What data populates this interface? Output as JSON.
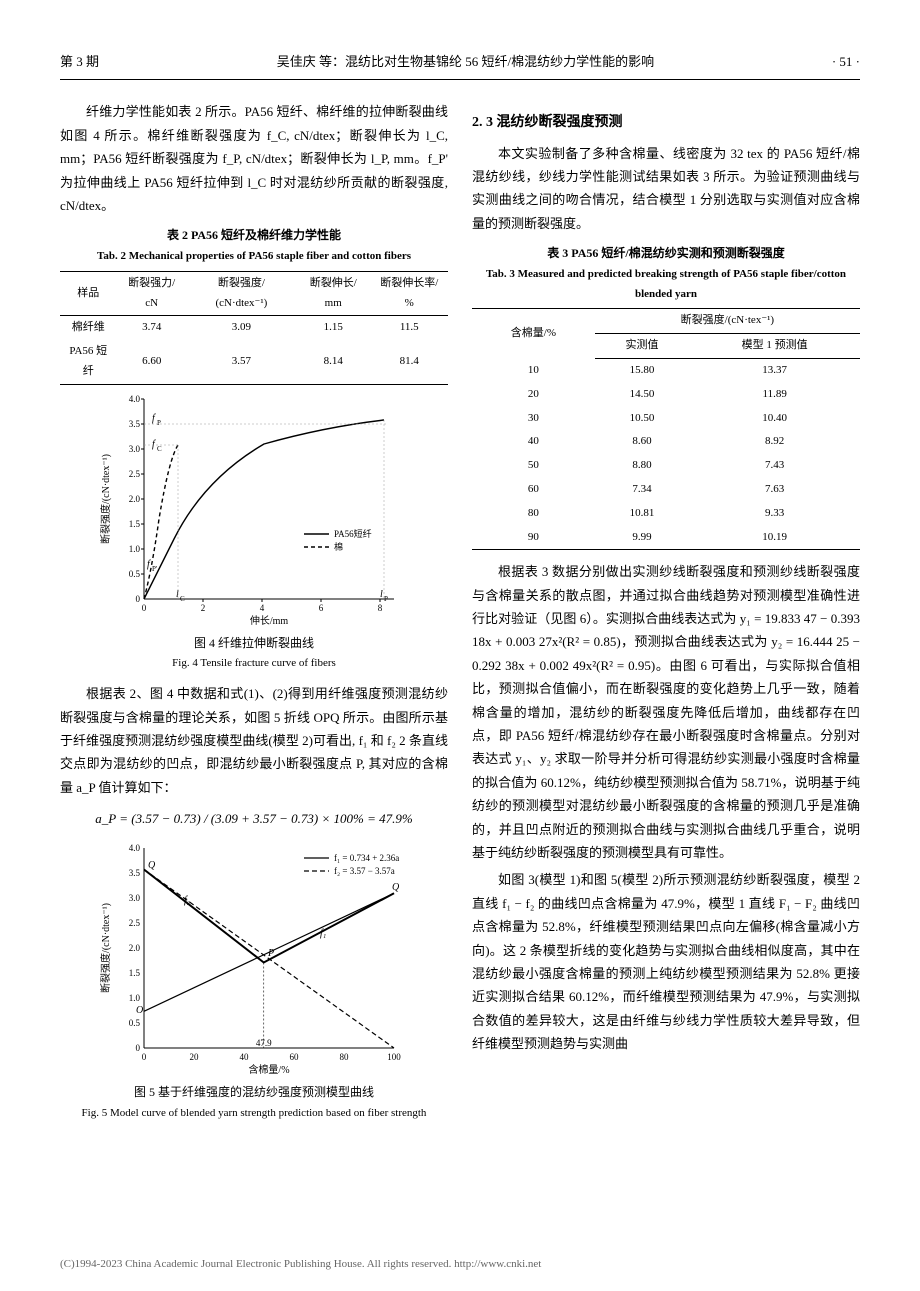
{
  "header": {
    "left": "第 3 期",
    "center": "吴佳庆  等：混纺比对生物基锦纶 56 短纤/棉混纺纱力学性能的影响",
    "right": "· 51 ·"
  },
  "left_col": {
    "intro_para": "纤维力学性能如表 2 所示。PA56 短纤、棉纤维的拉伸断裂曲线如图 4 所示。棉纤维断裂强度为 f_C, cN/dtex；断裂伸长为 l_C, mm；PA56 短纤断裂强度为 f_P, cN/dtex；断裂伸长为 l_P, mm。f_P' 为拉伸曲线上 PA56 短纤拉伸到 l_C 时对混纺纱所贡献的断裂强度, cN/dtex。",
    "table2": {
      "caption_cn": "表 2  PA56 短纤及棉纤维力学性能",
      "caption_en": "Tab. 2  Mechanical properties of PA56 staple fiber and cotton fibers",
      "headers": [
        "样品",
        "断裂强力/\ncN",
        "断裂强度/\n(cN·dtex⁻¹)",
        "断裂伸长/\nmm",
        "断裂伸长率/\n%"
      ],
      "rows": [
        [
          "棉纤维",
          "3.74",
          "3.09",
          "1.15",
          "11.5"
        ],
        [
          "PA56 短纤",
          "6.60",
          "3.57",
          "8.14",
          "81.4"
        ]
      ]
    },
    "fig4": {
      "caption_cn": "图 4  纤维拉伸断裂曲线",
      "caption_en": "Fig. 4  Tensile fracture curve of fibers",
      "xlabel": "伸长/mm",
      "ylabel": "断裂强度/(cN·dtex⁻¹)",
      "xlim": [
        0,
        8.5
      ],
      "ylim": [
        0,
        4.0
      ],
      "xticks": [
        0,
        2,
        4,
        6,
        8
      ],
      "yticks": [
        0,
        0.5,
        1.0,
        1.5,
        2.0,
        2.5,
        3.0,
        3.5,
        4.0
      ],
      "legend": [
        "PA56短纤",
        "棉"
      ],
      "pa56_color": "#000000",
      "cotton_color": "#000000",
      "fp_label": "f_P",
      "fc_label": "f_C",
      "fp1_label": "f_P'",
      "lc_label": "l_C",
      "lp_label": "l_P"
    },
    "mid_para": "根据表 2、图 4 中数据和式(1)、(2)得到用纤维强度预测混纺纱断裂强度与含棉量的理论关系，如图 5 折线 OPQ 所示。由图所示基于纤维强度预测混纺纱强度模型曲线(模型 2)可看出, f₁ 和 f₂ 2 条直线交点即为混纺纱的凹点，即混纺纱最小断裂强度点 P, 其对应的含棉量 a_P 值计算如下：",
    "formula": "a_P = (3.57 − 0.73) / (3.09 + 3.57 − 0.73) × 100% = 47.9%",
    "fig5": {
      "caption_cn": "图 5  基于纤维强度的混纺纱强度预测模型曲线",
      "caption_en": "Fig. 5  Model curve of blended yarn strength prediction based on fiber strength",
      "xlabel": "含棉量/%",
      "ylabel": "断裂强度/(cN·dtex⁻¹)",
      "xlim": [
        0,
        100
      ],
      "ylim": [
        0,
        4.0
      ],
      "xticks": [
        0,
        20,
        40,
        60,
        80,
        100
      ],
      "yticks": [
        0,
        0.5,
        1.0,
        1.5,
        2.0,
        2.5,
        3.0,
        3.5,
        4.0
      ],
      "legend": [
        "f₁ = 0.734 + 2.36a",
        "f₂ = 3.57 − 3.57a"
      ],
      "f1_label": "f₁",
      "f2_label": "f₂",
      "Q_label": "Q",
      "O_label": "O",
      "P_label": "P",
      "ap_value": "47.9"
    }
  },
  "right_col": {
    "sec_title": "2. 3  混纺纱断裂强度预测",
    "para1": "本文实验制备了多种含棉量、线密度为 32 tex 的 PA56 短纤/棉混纺纱线，纱线力学性能测试结果如表 3 所示。为验证预测曲线与实测曲线之间的吻合情况，结合模型 1 分别选取与实测值对应含棉量的预测断裂强度。",
    "table3": {
      "caption_cn": "表 3  PA56 短纤/棉混纺纱实测和预测断裂强度",
      "caption_en": "Tab. 3  Measured and predicted breaking strength of PA56 staple fiber/cotton blended yarn",
      "header_top": [
        "含棉量/%",
        "断裂强度/(cN·tex⁻¹)"
      ],
      "header_sub": [
        "实测值",
        "模型 1 预测值"
      ],
      "rows": [
        [
          "10",
          "15.80",
          "13.37"
        ],
        [
          "20",
          "14.50",
          "11.89"
        ],
        [
          "30",
          "10.50",
          "10.40"
        ],
        [
          "40",
          "8.60",
          "8.92"
        ],
        [
          "50",
          "8.80",
          "7.43"
        ],
        [
          "60",
          "7.34",
          "7.63"
        ],
        [
          "80",
          "10.81",
          "9.33"
        ],
        [
          "90",
          "9.99",
          "10.19"
        ]
      ]
    },
    "para2": "根据表 3 数据分别做出实测纱线断裂强度和预测纱线断裂强度与含棉量关系的散点图，并通过拟合曲线趋势对预测模型准确性进行比对验证（见图 6）。实测拟合曲线表达式为 y₁ = 19.833 47 − 0.393 18x + 0.003 27x²(R² = 0.85)，预测拟合曲线表达式为 y₂ = 16.444 25 − 0.292 38x + 0.002 49x²(R² = 0.95)。由图 6 可看出，与实际拟合值相比，预测拟合值偏小，而在断裂强度的变化趋势上几乎一致，随着棉含量的增加，混纺纱的断裂强度先降低后增加，曲线都存在凹点，即 PA56 短纤/棉混纺纱存在最小断裂强度时含棉量点。分别对表达式 y₁、y₂ 求取一阶导并分析可得混纺纱实测最小强度时含棉量的拟合值为 60.12%，纯纺纱模型预测拟合值为 58.71%，说明基于纯纺纱的预测模型对混纺纱最小断裂强度的含棉量的预测几乎是准确的，并且凹点附近的预测拟合曲线与实测拟合曲线几乎重合，说明基于纯纺纱断裂强度的预测模型具有可靠性。",
    "para3": "如图 3(模型 1)和图 5(模型 2)所示预测混纺纱断裂强度，模型 2 直线 f₁ − f₂ 的曲线凹点含棉量为 47.9%，模型 1 直线 F₁ − F₂ 曲线凹点含棉量为 52.8%，纤维模型预测结果凹点向左偏移(棉含量减小方向)。这 2 条模型折线的变化趋势与实测拟合曲线相似度高，其中在混纺纱最小强度含棉量的预测上纯纺纱模型预测结果为 52.8% 更接近实测拟合结果 60.12%，而纤维模型预测结果为 47.9%，与实测拟合数值的差异较大，这是由纤维与纱线力学性质较大差异导致，但纤维模型预测趋势与实测曲"
  },
  "footer": "(C)1994-2023 China Academic Journal Electronic Publishing House. All rights reserved.   http://www.cnki.net"
}
